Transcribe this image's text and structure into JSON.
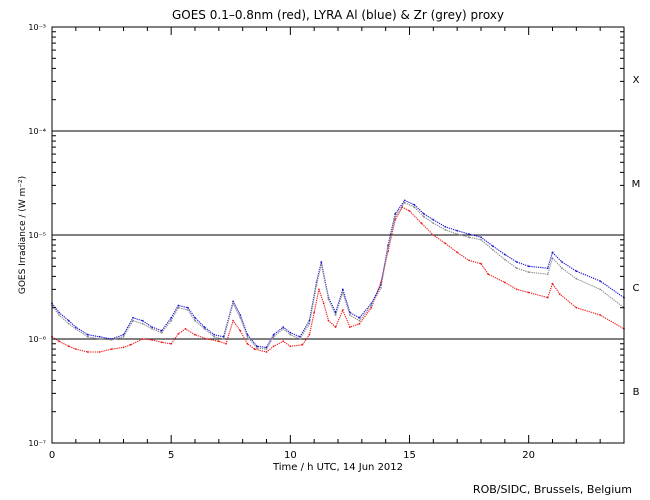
{
  "chart_data": {
    "type": "line",
    "title": "GOES 0.1–0.8nm (red), LYRA Al (blue) & Zr (grey) proxy",
    "xlabel": "Time / h UTC, 14 Jun 2012",
    "ylabel": "GOES Irradiance / (W m⁻²)",
    "xlim": [
      0,
      24
    ],
    "ylim_log10": [
      -7,
      -3
    ],
    "x_ticks": [
      0,
      5,
      10,
      15,
      20
    ],
    "y_ticks": [
      {
        "exp": -7,
        "label": "10⁻⁷"
      },
      {
        "exp": -6,
        "label": "10⁻⁶"
      },
      {
        "exp": -5,
        "label": "10⁻⁵"
      },
      {
        "exp": -4,
        "label": "10⁻⁴"
      },
      {
        "exp": -3,
        "label": "10⁻³"
      }
    ],
    "flare_class_lines": [
      -6,
      -5,
      -4
    ],
    "flare_classes": [
      {
        "label": "B",
        "log10": -6.5
      },
      {
        "label": "C",
        "log10": -5.5
      },
      {
        "label": "M",
        "log10": -4.5
      },
      {
        "label": "X",
        "log10": -3.5
      }
    ],
    "series": [
      {
        "name": "GOES 0.1-0.8nm",
        "color": "#ee1c1c",
        "points": [
          [
            0,
            1.05e-06
          ],
          [
            0.3,
            9.5e-07
          ],
          [
            0.7,
            8.5e-07
          ],
          [
            1,
            8e-07
          ],
          [
            1.5,
            7.5e-07
          ],
          [
            2,
            7.5e-07
          ],
          [
            2.5,
            8e-07
          ],
          [
            3,
            8.3e-07
          ],
          [
            3.3,
            8.8e-07
          ],
          [
            3.8,
            1e-06
          ],
          [
            4.2,
            9.8e-07
          ],
          [
            4.6,
            9.3e-07
          ],
          [
            5,
            9e-07
          ],
          [
            5.3,
            1.12e-06
          ],
          [
            5.6,
            1.25e-06
          ],
          [
            6,
            1.1e-06
          ],
          [
            6.5,
            1e-06
          ],
          [
            7,
            9.5e-07
          ],
          [
            7.3,
            9e-07
          ],
          [
            7.6,
            1.5e-06
          ],
          [
            7.9,
            1.2e-06
          ],
          [
            8.2,
            9e-07
          ],
          [
            8.5,
            8e-07
          ],
          [
            9,
            7.5e-07
          ],
          [
            9.3,
            8.5e-07
          ],
          [
            9.7,
            9.5e-07
          ],
          [
            10,
            8.5e-07
          ],
          [
            10.5,
            8.8e-07
          ],
          [
            10.8,
            1.1e-06
          ],
          [
            11,
            1.8e-06
          ],
          [
            11.2,
            3e-06
          ],
          [
            11.4,
            2.2e-06
          ],
          [
            11.6,
            1.5e-06
          ],
          [
            11.9,
            1.3e-06
          ],
          [
            12.2,
            1.9e-06
          ],
          [
            12.5,
            1.3e-06
          ],
          [
            12.9,
            1.4e-06
          ],
          [
            13.4,
            2e-06
          ],
          [
            13.8,
            3.5e-06
          ],
          [
            14.1,
            7e-06
          ],
          [
            14.4,
            1.4e-05
          ],
          [
            14.7,
            1.85e-05
          ],
          [
            15.0,
            1.7e-05
          ],
          [
            15.5,
            1.3e-05
          ],
          [
            16,
            1e-05
          ],
          [
            16.5,
            8.3e-06
          ],
          [
            17,
            6.8e-06
          ],
          [
            17.5,
            5.7e-06
          ],
          [
            18,
            5.3e-06
          ],
          [
            18.3,
            4.2e-06
          ],
          [
            19,
            3.5e-06
          ],
          [
            19.5,
            3e-06
          ],
          [
            20,
            2.8e-06
          ],
          [
            20.8,
            2.5e-06
          ],
          [
            21,
            3.4e-06
          ],
          [
            21.3,
            2.7e-06
          ],
          [
            22,
            2e-06
          ],
          [
            23,
            1.7e-06
          ],
          [
            24,
            1.25e-06
          ]
        ]
      },
      {
        "name": "LYRA Al proxy",
        "color": "#1a1ad4",
        "points": [
          [
            0,
            2.2e-06
          ],
          [
            0.3,
            1.8e-06
          ],
          [
            0.7,
            1.5e-06
          ],
          [
            1,
            1.3e-06
          ],
          [
            1.5,
            1.1e-06
          ],
          [
            2,
            1.05e-06
          ],
          [
            2.5,
            1e-06
          ],
          [
            3,
            1.1e-06
          ],
          [
            3.4,
            1.6e-06
          ],
          [
            3.8,
            1.5e-06
          ],
          [
            4.2,
            1.3e-06
          ],
          [
            4.6,
            1.2e-06
          ],
          [
            5,
            1.6e-06
          ],
          [
            5.3,
            2.1e-06
          ],
          [
            5.7,
            2e-06
          ],
          [
            6,
            1.6e-06
          ],
          [
            6.4,
            1.3e-06
          ],
          [
            6.8,
            1.1e-06
          ],
          [
            7.2,
            1.05e-06
          ],
          [
            7.6,
            2.3e-06
          ],
          [
            7.9,
            1.7e-06
          ],
          [
            8.2,
            1.1e-06
          ],
          [
            8.6,
            8.5e-07
          ],
          [
            9,
            8.3e-07
          ],
          [
            9.3,
            1.1e-06
          ],
          [
            9.7,
            1.3e-06
          ],
          [
            10,
            1.15e-06
          ],
          [
            10.4,
            1.05e-06
          ],
          [
            10.8,
            1.5e-06
          ],
          [
            11.1,
            3.5e-06
          ],
          [
            11.3,
            5.5e-06
          ],
          [
            11.6,
            2.5e-06
          ],
          [
            11.9,
            1.8e-06
          ],
          [
            12.2,
            3e-06
          ],
          [
            12.5,
            1.8e-06
          ],
          [
            12.9,
            1.6e-06
          ],
          [
            13.4,
            2.2e-06
          ],
          [
            13.8,
            3.3e-06
          ],
          [
            14.1,
            8e-06
          ],
          [
            14.4,
            1.6e-05
          ],
          [
            14.8,
            2.15e-05
          ],
          [
            15.2,
            1.95e-05
          ],
          [
            15.6,
            1.6e-05
          ],
          [
            16,
            1.4e-05
          ],
          [
            16.5,
            1.2e-05
          ],
          [
            17,
            1.1e-05
          ],
          [
            17.5,
            1.02e-05
          ],
          [
            18,
            9.5e-06
          ],
          [
            18.5,
            7.8e-06
          ],
          [
            19,
            6.5e-06
          ],
          [
            19.5,
            5.5e-06
          ],
          [
            20,
            5e-06
          ],
          [
            20.8,
            4.8e-06
          ],
          [
            21.0,
            6.8e-06
          ],
          [
            21.4,
            5.5e-06
          ],
          [
            22,
            4.5e-06
          ],
          [
            23,
            3.6e-06
          ],
          [
            24,
            2.5e-06
          ]
        ]
      },
      {
        "name": "LYRA Zr proxy",
        "color": "#8a8a8a",
        "points": [
          [
            0,
            2.1e-06
          ],
          [
            0.3,
            1.7e-06
          ],
          [
            0.7,
            1.4e-06
          ],
          [
            1,
            1.25e-06
          ],
          [
            1.5,
            1.05e-06
          ],
          [
            2,
            1e-06
          ],
          [
            2.5,
            9.8e-07
          ],
          [
            3,
            1.05e-06
          ],
          [
            3.4,
            1.5e-06
          ],
          [
            3.8,
            1.4e-06
          ],
          [
            4.2,
            1.25e-06
          ],
          [
            4.6,
            1.15e-06
          ],
          [
            5,
            1.5e-06
          ],
          [
            5.3,
            2e-06
          ],
          [
            5.7,
            1.9e-06
          ],
          [
            6,
            1.5e-06
          ],
          [
            6.4,
            1.25e-06
          ],
          [
            6.8,
            1.05e-06
          ],
          [
            7.2,
            1e-06
          ],
          [
            7.6,
            2.2e-06
          ],
          [
            7.9,
            1.6e-06
          ],
          [
            8.2,
            1.05e-06
          ],
          [
            8.6,
            8.2e-07
          ],
          [
            9,
            8e-07
          ],
          [
            9.3,
            1.05e-06
          ],
          [
            9.7,
            1.25e-06
          ],
          [
            10,
            1.1e-06
          ],
          [
            10.4,
            1e-06
          ],
          [
            10.8,
            1.4e-06
          ],
          [
            11.1,
            3.3e-06
          ],
          [
            11.3,
            5.2e-06
          ],
          [
            11.6,
            2.4e-06
          ],
          [
            11.9,
            1.7e-06
          ],
          [
            12.2,
            2.8e-06
          ],
          [
            12.5,
            1.7e-06
          ],
          [
            12.9,
            1.5e-06
          ],
          [
            13.4,
            2.1e-06
          ],
          [
            13.8,
            3.1e-06
          ],
          [
            14.1,
            7.6e-06
          ],
          [
            14.4,
            1.5e-05
          ],
          [
            14.8,
            2.05e-05
          ],
          [
            15.2,
            1.85e-05
          ],
          [
            15.6,
            1.5e-05
          ],
          [
            16,
            1.3e-05
          ],
          [
            16.5,
            1.12e-05
          ],
          [
            17,
            1.02e-05
          ],
          [
            17.5,
            9.5e-06
          ],
          [
            18,
            9e-06
          ],
          [
            18.5,
            7.2e-06
          ],
          [
            19,
            5.8e-06
          ],
          [
            19.5,
            4.8e-06
          ],
          [
            20,
            4.4e-06
          ],
          [
            20.8,
            4.2e-06
          ],
          [
            21.0,
            6e-06
          ],
          [
            21.4,
            4.8e-06
          ],
          [
            22,
            3.8e-06
          ],
          [
            23,
            3e-06
          ],
          [
            24,
            2e-06
          ]
        ]
      }
    ],
    "credit": "ROB/SIDC, Brussels, Belgium"
  }
}
